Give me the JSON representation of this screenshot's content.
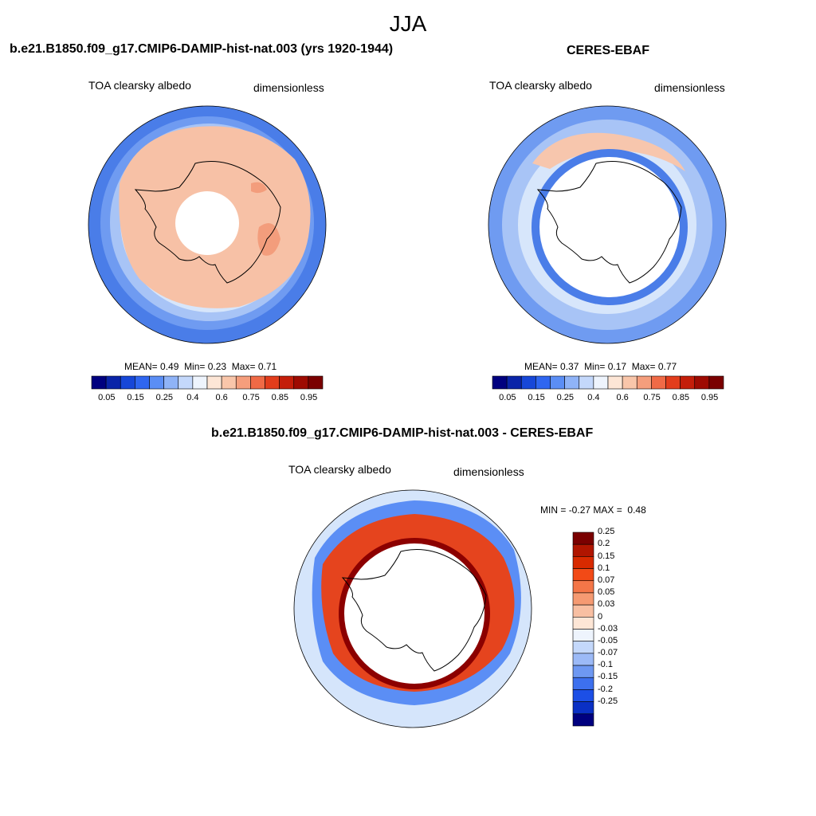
{
  "figure": {
    "title": "JJA"
  },
  "panel_model": {
    "title": "b.e21.B1850.f09_g17.CMIP6-DAMIP-hist-nat.003 (yrs 1920-1944)",
    "variable": "TOA clearsky albedo",
    "units": "dimensionless",
    "stats": {
      "mean_label": "MEAN=",
      "mean": "0.49",
      "min_label": "Min=",
      "min": "0.23",
      "max_label": "Max=",
      "max": "0.71"
    }
  },
  "panel_obs": {
    "title": "CERES-EBAF",
    "variable": "TOA clearsky albedo",
    "units": "dimensionless",
    "stats": {
      "mean_label": "MEAN=",
      "mean": "0.37",
      "min_label": "Min=",
      "min": "0.17",
      "max_label": "Max=",
      "max": "0.77"
    }
  },
  "panel_diff": {
    "title": "b.e21.B1850.f09_g17.CMIP6-DAMIP-hist-nat.003 - CERES-EBAF",
    "variable": "TOA clearsky albedo",
    "units": "dimensionless",
    "stats": {
      "min_label": "MIN =",
      "min": "-0.27",
      "max_label": "MAX =",
      "max": "0.48"
    }
  },
  "colorbar_main": {
    "tick_labels": [
      "0.05",
      "0.15",
      "0.25",
      "0.4",
      "0.6",
      "0.75",
      "0.85",
      "0.95"
    ],
    "colors": [
      "#00007f",
      "#0a24a8",
      "#1747d8",
      "#2f66f0",
      "#5b8ef5",
      "#8fb3f7",
      "#c4d8fb",
      "#eef4fd",
      "#fde6d6",
      "#f9c6aa",
      "#f59e7c",
      "#f06a46",
      "#e23d1c",
      "#c41e0a",
      "#9e0b02",
      "#7a0000"
    ]
  },
  "colorbar_diff": {
    "tick_labels": [
      "0.25",
      "0.2",
      "0.15",
      "0.1",
      "0.07",
      "0.05",
      "0.03",
      "0",
      "-0.03",
      "-0.05",
      "-0.07",
      "-0.1",
      "-0.15",
      "-0.2",
      "-0.25"
    ],
    "colors": [
      "#7a0000",
      "#b01500",
      "#d82a00",
      "#f24a16",
      "#f47648",
      "#f59a72",
      "#f8bfa2",
      "#fde6d6",
      "#eef4fd",
      "#c4d8fb",
      "#9cbaf7",
      "#6e98f2",
      "#3d70ee",
      "#1c4fe6",
      "#0a30c4",
      "#00007f"
    ]
  },
  "map_colors": {
    "model_field": "#f7c1a6",
    "model_patch": "#f39d7c",
    "model_ring_1": "#d7e6fb",
    "model_ring_2": "#a8c4f6",
    "model_ring_3": "#6f9bf1",
    "model_ring_4": "#4a7de8",
    "obs_outer": "#6f9bf1",
    "obs_mid": "#a8c4f6",
    "obs_band": "#f7c6ad",
    "obs_inner": "#4a7de8",
    "diff_outer": "#d5e5fb",
    "diff_blue": "#5b8ef5",
    "diff_red": "#e5441e",
    "diff_dark": "#8c0000",
    "coast": "#000000"
  }
}
